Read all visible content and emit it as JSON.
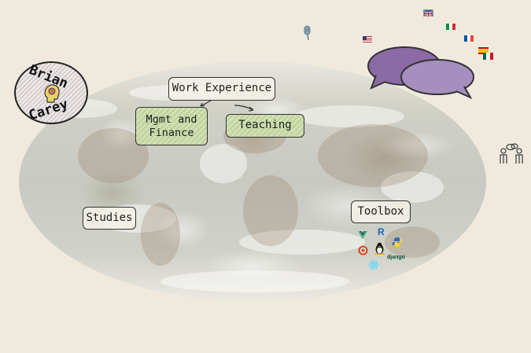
{
  "logo": {
    "first": "Brian",
    "last": "Carey"
  },
  "nodes": {
    "work_experience": "Work Experience",
    "mgmt_finance_line1": "Mgmt and",
    "mgmt_finance_line2": "Finance",
    "teaching": "Teaching",
    "studies": "Studies",
    "toolbox": "Toolbox"
  },
  "toolbox_icons": {
    "r": "R",
    "django": "django"
  },
  "languages": [
    "en-gb",
    "it",
    "fr",
    "es",
    "mx",
    "en-us"
  ],
  "colors": {
    "background": "#efeadd",
    "green_box": "#d4e1b9",
    "bubble_dark": "#8b6aa6",
    "bubble_light": "#a58fbf"
  }
}
